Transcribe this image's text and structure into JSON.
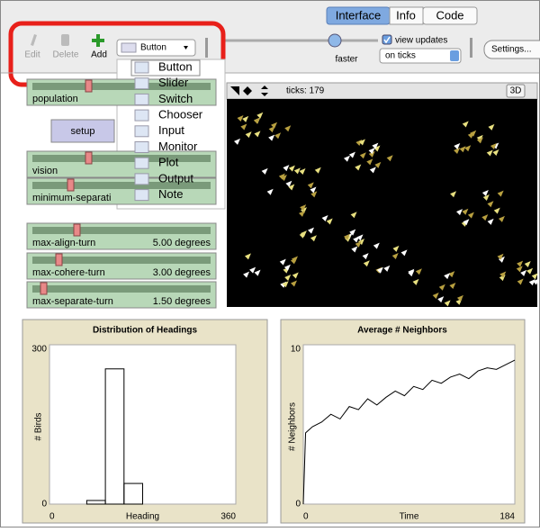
{
  "tabs": [
    "Interface",
    "Info",
    "Code"
  ],
  "toolbar": {
    "edit": "Edit",
    "delete": "Delete",
    "add": "Add",
    "widget_select": "Button",
    "speed_label": "faster",
    "view_updates": "view updates",
    "update_mode": "on ticks",
    "settings": "Settings..."
  },
  "menu": [
    "Button",
    "Slider",
    "Switch",
    "Chooser",
    "Input",
    "Monitor",
    "Plot",
    "Output",
    "Note"
  ],
  "view": {
    "ticks": "ticks: 179",
    "three_d": "3D"
  },
  "setup_button": "setup",
  "sliders": [
    {
      "label": "population"
    },
    {
      "label": "vision"
    },
    {
      "label": "minimum-separati"
    },
    {
      "label": "max-align-turn",
      "value": "5.00 degrees"
    },
    {
      "label": "max-cohere-turn",
      "value": "3.00 degrees"
    },
    {
      "label": "max-separate-turn",
      "value": "1.50 degrees"
    }
  ],
  "chart_data": [
    {
      "type": "histogram",
      "title": "Distribution of Headings",
      "x_label": "Heading",
      "y_label": "# Birds",
      "bins": [
        0,
        36,
        72,
        108,
        144,
        180,
        216,
        252,
        288,
        324,
        360
      ],
      "values": [
        0,
        0,
        7,
        262,
        40,
        0,
        0,
        0,
        0,
        0
      ],
      "xlim": [
        0,
        360
      ],
      "ylim": [
        0,
        300
      ],
      "xticks": [
        0,
        360
      ],
      "yticks": [
        0,
        300
      ],
      "color": "#000000"
    },
    {
      "type": "line",
      "title": "Average # Neighbors",
      "x_label": "Time",
      "y_label": "# Neighbors",
      "x": [
        0,
        2,
        8,
        16,
        24,
        32,
        40,
        48,
        56,
        64,
        72,
        80,
        88,
        96,
        104,
        112,
        120,
        128,
        136,
        144,
        152,
        160,
        168,
        176,
        184
      ],
      "values": [
        0,
        4.6,
        5.0,
        5.3,
        5.8,
        5.5,
        6.3,
        6.1,
        6.8,
        6.4,
        6.9,
        7.3,
        7.0,
        7.6,
        7.4,
        8.0,
        7.8,
        8.2,
        8.4,
        8.1,
        8.6,
        8.8,
        8.7,
        9.0,
        9.3
      ],
      "xlim": [
        0,
        184
      ],
      "ylim": [
        0,
        10
      ],
      "xticks": [
        0,
        184
      ],
      "yticks": [
        0,
        10
      ],
      "color": "#000000"
    }
  ]
}
